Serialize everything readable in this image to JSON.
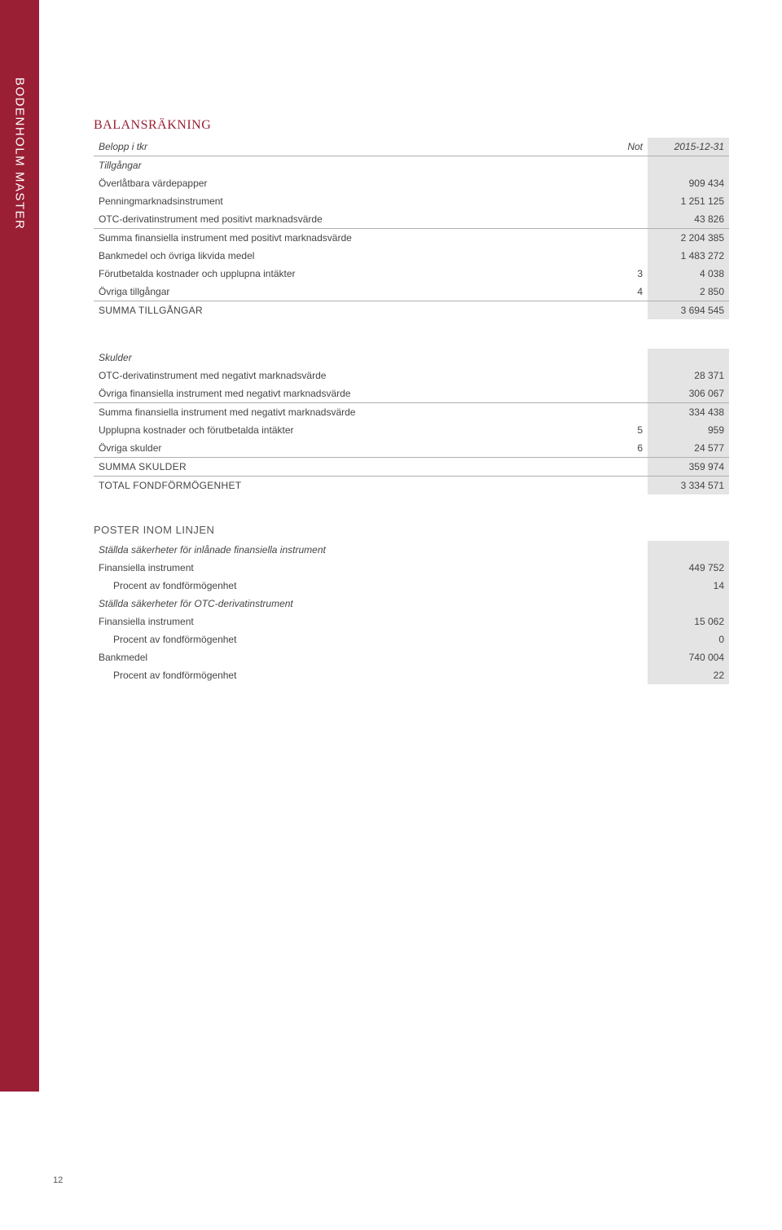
{
  "sidebar": {
    "title": "BODENHOLM MASTER",
    "bg_color": "#9a1f35",
    "text_color": "#ffffff"
  },
  "page_number": "12",
  "section1": {
    "title": "BALANSRÄKNING",
    "title_color": "#9a1f35",
    "header": {
      "c1": "Belopp i tkr",
      "c2": "Not",
      "c3": "2015-12-31"
    },
    "subhead": "Tillgångar",
    "rows": [
      {
        "label": "Överlåtbara värdepapper",
        "not": "",
        "val": "909 434"
      },
      {
        "label": "Penningmarknadsinstrument",
        "not": "",
        "val": "1 251 125"
      },
      {
        "label": "OTC-derivatinstrument med positivt marknadsvärde",
        "not": "",
        "val": "43 826"
      },
      {
        "label": "Summa finansiella instrument med positivt marknadsvärde",
        "not": "",
        "val": "2 204 385",
        "border_top": true
      },
      {
        "label": "Bankmedel och övriga likvida medel",
        "not": "",
        "val": "1 483 272"
      },
      {
        "label": "Förutbetalda kostnader och upplupna intäkter",
        "not": "3",
        "val": "4 038"
      },
      {
        "label": "Övriga tillgångar",
        "not": "4",
        "val": "2 850"
      },
      {
        "label": "SUMMA TILLGÅNGAR",
        "not": "",
        "val": "3 694 545",
        "border_top": true,
        "caps": true
      }
    ]
  },
  "section2": {
    "subhead": "Skulder",
    "rows": [
      {
        "label": "OTC-derivatinstrument med negativt marknadsvärde",
        "not": "",
        "val": "28 371"
      },
      {
        "label": "Övriga finansiella instrument med negativt marknadsvärde",
        "not": "",
        "val": "306 067"
      },
      {
        "label": "Summa finansiella instrument med negativt marknadsvärde",
        "not": "",
        "val": "334 438",
        "border_top": true
      },
      {
        "label": "Upplupna kostnader och förutbetalda intäkter",
        "not": "5",
        "val": "959"
      },
      {
        "label": "Övriga skulder",
        "not": "6",
        "val": "24 577"
      },
      {
        "label": "SUMMA SKULDER",
        "not": "",
        "val": "359 974",
        "border_top": true,
        "caps": true
      },
      {
        "label": "TOTAL FONDFÖRMÖGENHET",
        "not": "",
        "val": "3 334 571",
        "border_top": true,
        "caps": true
      }
    ]
  },
  "section3": {
    "title": "POSTER INOM LINJEN",
    "sub1": "Ställda säkerheter för inlånade finansiella instrument",
    "sub2": "Ställda säkerheter för OTC-derivatinstrument",
    "rows1": [
      {
        "label": "Finansiella instrument",
        "val": "449 752"
      },
      {
        "label": "Procent av fondförmögenhet",
        "val": "14",
        "indent": true
      }
    ],
    "rows2": [
      {
        "label": "Finansiella instrument",
        "val": "15 062"
      },
      {
        "label": "Procent av fondförmögenhet",
        "val": "0",
        "indent": true
      },
      {
        "label": "Bankmedel",
        "val": "740 004"
      },
      {
        "label": "Procent av fondförmögenhet",
        "val": "22",
        "indent": true
      }
    ]
  },
  "shaded_bg": "#e4e4e4"
}
